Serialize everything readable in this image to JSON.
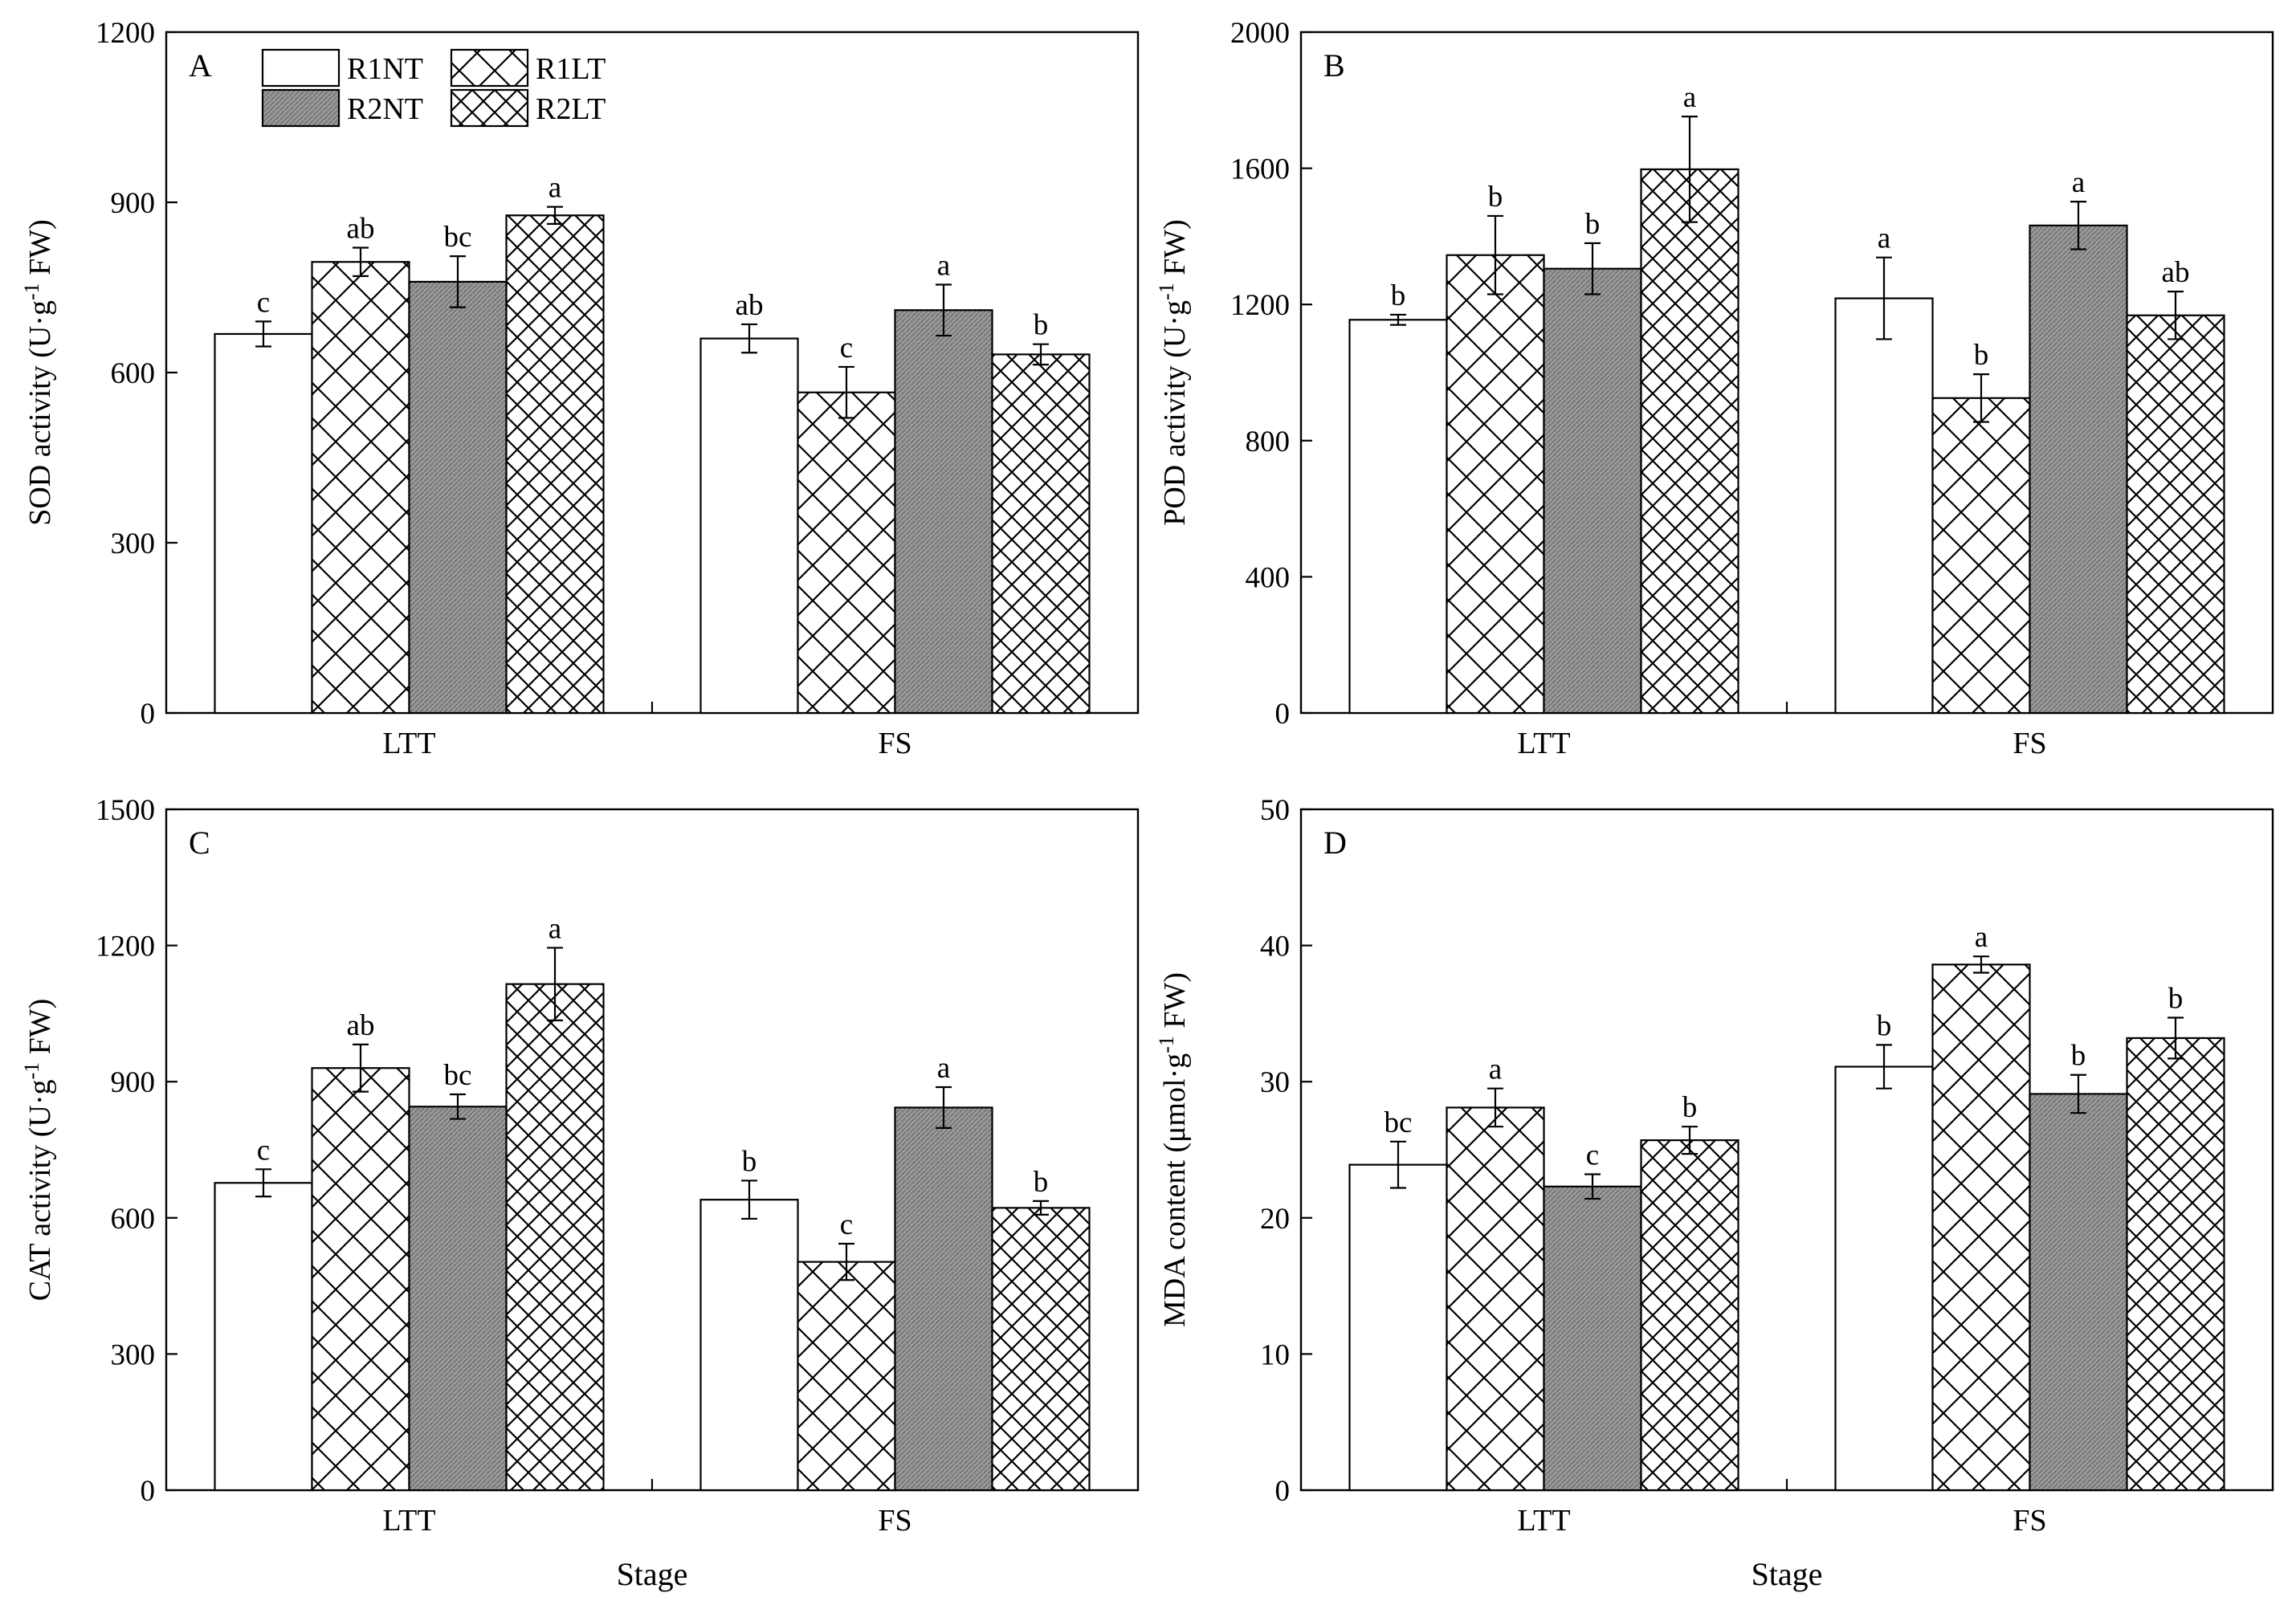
{
  "series_styles": [
    {
      "name": "R1NT",
      "pattern": "none"
    },
    {
      "name": "R1LT",
      "pattern": "hatch-cross"
    },
    {
      "name": "R2NT",
      "pattern": "dense-gray"
    },
    {
      "name": "R2LT",
      "pattern": "hatch-cross-dense"
    }
  ],
  "chart_data": [
    {
      "type": "bar",
      "panel": "A",
      "categories": [
        "LTT",
        "FS"
      ],
      "ylabel_main": "SOD activity (U·g",
      "ylabel_sup": "-1",
      "ylabel_tail": " FW)",
      "xlabel": "",
      "ylim": [
        0,
        1200
      ],
      "yticks": [
        0,
        300,
        600,
        900,
        1200
      ],
      "legend": "top-left",
      "series": [
        {
          "name": "R1NT",
          "values": [
            668,
            660
          ],
          "errors": [
            22,
            25
          ],
          "letters": [
            "c",
            "ab"
          ]
        },
        {
          "name": "R1LT",
          "values": [
            795,
            565
          ],
          "errors": [
            25,
            45
          ],
          "letters": [
            "ab",
            "c"
          ]
        },
        {
          "name": "R2NT",
          "values": [
            760,
            710
          ],
          "errors": [
            45,
            45
          ],
          "letters": [
            "bc",
            "a"
          ]
        },
        {
          "name": "R2LT",
          "values": [
            877,
            632
          ],
          "errors": [
            15,
            18
          ],
          "letters": [
            "a",
            "b"
          ]
        }
      ]
    },
    {
      "type": "bar",
      "panel": "B",
      "categories": [
        "LTT",
        "FS"
      ],
      "ylabel_main": "POD activity (U·g",
      "ylabel_sup": "-1",
      "ylabel_tail": " FW)",
      "xlabel": "",
      "ylim": [
        0,
        2000
      ],
      "yticks": [
        0,
        400,
        800,
        1200,
        1600,
        2000
      ],
      "series": [
        {
          "name": "R1NT",
          "values": [
            1155,
            1218
          ],
          "errors": [
            15,
            120
          ],
          "letters": [
            "b",
            "a"
          ]
        },
        {
          "name": "R1LT",
          "values": [
            1345,
            925
          ],
          "errors": [
            115,
            70
          ],
          "letters": [
            "b",
            "b"
          ]
        },
        {
          "name": "R2NT",
          "values": [
            1305,
            1432
          ],
          "errors": [
            75,
            70
          ],
          "letters": [
            "b",
            "a"
          ]
        },
        {
          "name": "R2LT",
          "values": [
            1597,
            1168
          ],
          "errors": [
            155,
            70
          ],
          "letters": [
            "a",
            "ab"
          ]
        }
      ]
    },
    {
      "type": "bar",
      "panel": "C",
      "categories": [
        "LTT",
        "FS"
      ],
      "ylabel_main": "CAT activity (U·g",
      "ylabel_sup": "-1",
      "ylabel_tail": " FW)",
      "xlabel": "Stage",
      "ylim": [
        0,
        1500
      ],
      "yticks": [
        0,
        300,
        600,
        900,
        1200,
        1500
      ],
      "series": [
        {
          "name": "R1NT",
          "values": [
            677,
            640
          ],
          "errors": [
            30,
            42
          ],
          "letters": [
            "c",
            "b"
          ]
        },
        {
          "name": "R1LT",
          "values": [
            930,
            503
          ],
          "errors": [
            52,
            40
          ],
          "letters": [
            "ab",
            "c"
          ]
        },
        {
          "name": "R2NT",
          "values": [
            845,
            843
          ],
          "errors": [
            27,
            45
          ],
          "letters": [
            "bc",
            "a"
          ]
        },
        {
          "name": "R2LT",
          "values": [
            1115,
            622
          ],
          "errors": [
            80,
            15
          ],
          "letters": [
            "a",
            "b"
          ]
        }
      ]
    },
    {
      "type": "bar",
      "panel": "D",
      "categories": [
        "LTT",
        "FS"
      ],
      "ylabel_main": "MDA content (μmol·g",
      "ylabel_sup": "-1",
      "ylabel_tail": " FW)",
      "xlabel": "Stage",
      "ylim": [
        0,
        50
      ],
      "yticks": [
        0,
        10,
        20,
        30,
        40,
        50
      ],
      "series": [
        {
          "name": "R1NT",
          "values": [
            23.9,
            31.1
          ],
          "errors": [
            1.7,
            1.6
          ],
          "letters": [
            "bc",
            "b"
          ]
        },
        {
          "name": "R1LT",
          "values": [
            28.1,
            38.6
          ],
          "errors": [
            1.4,
            0.6
          ],
          "letters": [
            "a",
            "a"
          ]
        },
        {
          "name": "R2NT",
          "values": [
            22.3,
            29.1
          ],
          "errors": [
            0.9,
            1.4
          ],
          "letters": [
            "c",
            "b"
          ]
        },
        {
          "name": "R2LT",
          "values": [
            25.7,
            33.2
          ],
          "errors": [
            1.0,
            1.5
          ],
          "letters": [
            "b",
            "b"
          ]
        }
      ]
    }
  ]
}
